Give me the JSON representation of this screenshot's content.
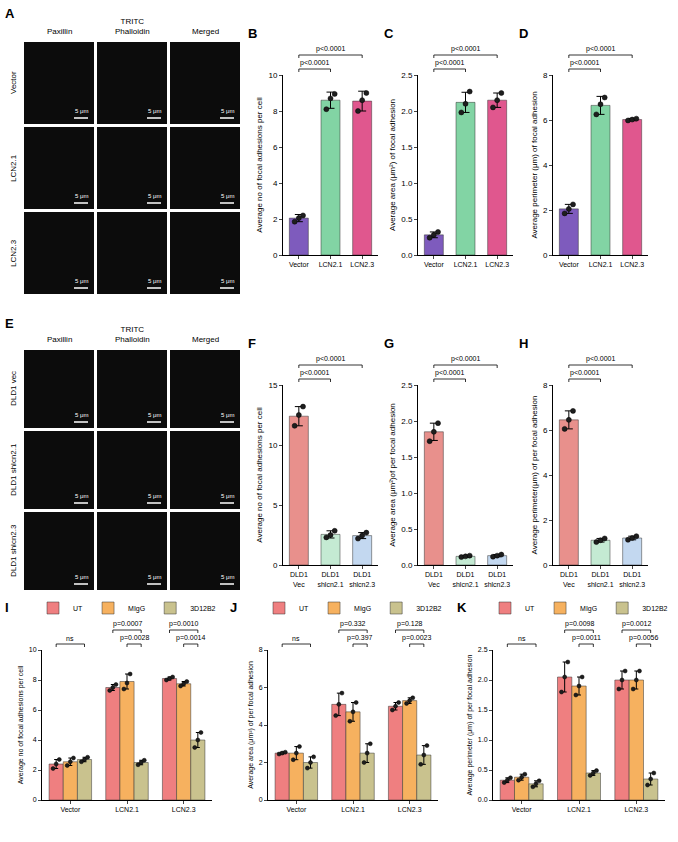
{
  "image_panels": [
    {
      "panel": "A",
      "columns": [
        "Paxillin",
        "TRITC Phalloidin",
        "Merged"
      ],
      "rows": [
        "Vector",
        "LCN2.1",
        "LCN2.3"
      ],
      "scale_bar": "5 μm"
    },
    {
      "panel": "E",
      "columns": [
        "Paxillin",
        "TRITC Phalloidin",
        "Merged"
      ],
      "rows": [
        "DLD1 vec",
        "DLD1 shlcn2.1",
        "DLD1 shlcn2.3"
      ],
      "scale_bar": "5 μm"
    }
  ],
  "chart_data": [
    {
      "panel": "B",
      "type": "bar",
      "y_label": "Average no of focal adhesions per cell",
      "grid": false,
      "categories": [
        "Vector",
        "LCN2.1",
        "LCN2.3"
      ],
      "colors": [
        "#7e5bbd",
        "#82d4a4",
        "#e0578e"
      ],
      "values": [
        2.05,
        8.6,
        8.55
      ],
      "errors": [
        0.2,
        0.45,
        0.55
      ],
      "points": [
        [
          1.85,
          2.05,
          2.2
        ],
        [
          8.1,
          8.7,
          8.95
        ],
        [
          8.0,
          8.6,
          9.0
        ]
      ],
      "ylim": [
        0,
        10
      ],
      "yticks": [
        0,
        2,
        4,
        6,
        8,
        10
      ],
      "comparisons": [
        {
          "from": "Vector",
          "to": "LCN2.1",
          "label": "p<0.0001"
        },
        {
          "from": "Vector",
          "to": "LCN2.3",
          "label": "p<0.0001"
        }
      ]
    },
    {
      "panel": "C",
      "type": "bar",
      "y_label": "Average area (μm²) of focal adhesion",
      "grid": false,
      "categories": [
        "Vector",
        "LCN2.1",
        "LCN2.3"
      ],
      "colors": [
        "#7e5bbd",
        "#82d4a4",
        "#e0578e"
      ],
      "values": [
        0.28,
        2.12,
        2.15
      ],
      "errors": [
        0.04,
        0.14,
        0.1
      ],
      "points": [
        [
          0.24,
          0.28,
          0.32
        ],
        [
          1.98,
          2.1,
          2.27
        ],
        [
          2.05,
          2.15,
          2.25
        ]
      ],
      "ylim": [
        0,
        2.5
      ],
      "yticks": [
        {
          "value": 0,
          "label": "0.0"
        },
        0.5,
        {
          "value": 1,
          "label": "1.0"
        },
        1.5,
        {
          "value": 2,
          "label": "2.0"
        },
        2.5
      ],
      "comparisons": [
        {
          "from": "Vector",
          "to": "LCN2.1",
          "label": "p<0.0001"
        },
        {
          "from": "Vector",
          "to": "LCN2.3",
          "label": "p<0.0001"
        }
      ]
    },
    {
      "panel": "D",
      "type": "bar",
      "y_label": "Average perimeter (μm) of focal adhesion",
      "grid": false,
      "categories": [
        "Vector",
        "LCN2.1",
        "LCN2.3"
      ],
      "colors": [
        "#7e5bbd",
        "#82d4a4",
        "#e0578e"
      ],
      "values": [
        2.05,
        6.65,
        6.02
      ],
      "errors": [
        0.2,
        0.4,
        0.05
      ],
      "points": [
        [
          1.85,
          2.05,
          2.25
        ],
        [
          6.25,
          6.7,
          7.0
        ],
        [
          5.98,
          6.02,
          6.06
        ]
      ],
      "ylim": [
        0,
        8
      ],
      "yticks": [
        0,
        2,
        4,
        6,
        8
      ],
      "comparisons": [
        {
          "from": "Vector",
          "to": "LCN2.1",
          "label": "p<0.0001"
        },
        {
          "from": "Vector",
          "to": "LCN2.3",
          "label": "p<0.0001"
        }
      ]
    },
    {
      "panel": "F",
      "type": "bar",
      "y_label": "Average no of focal adhesions per cell",
      "grid": false,
      "categories": [
        "DLD1 Vec",
        "DLD1 shlcn2.1",
        "DLD1 shlcn2.3"
      ],
      "colors": [
        "#e8908c",
        "#c4ead3",
        "#c3d8f0"
      ],
      "values": [
        12.4,
        2.55,
        2.45
      ],
      "errors": [
        0.8,
        0.3,
        0.25
      ],
      "points": [
        [
          11.6,
          12.5,
          13.2
        ],
        [
          2.3,
          2.5,
          2.85
        ],
        [
          2.2,
          2.45,
          2.7
        ]
      ],
      "ylim": [
        0,
        15
      ],
      "yticks": [
        0,
        5,
        10,
        15
      ],
      "comparisons": [
        {
          "from": "DLD1 Vec",
          "to": "DLD1 shlcn2.1",
          "label": "p<0.0001"
        },
        {
          "from": "DLD1 Vec",
          "to": "DLD1 shlcn2.3",
          "label": "p<0.0001"
        }
      ]
    },
    {
      "panel": "G",
      "type": "bar",
      "y_label": "Average area (μm²)of per focal adhesion",
      "grid": false,
      "categories": [
        "DLD1 Vec",
        "DLD1 shlcn2.1",
        "DLD1 shlcn2.3"
      ],
      "colors": [
        "#e8908c",
        "#c4ead3",
        "#c3d8f0"
      ],
      "values": [
        1.85,
        0.12,
        0.13
      ],
      "errors": [
        0.12,
        0.01,
        0.015
      ],
      "points": [
        [
          1.72,
          1.85,
          1.97
        ],
        [
          0.11,
          0.12,
          0.13
        ],
        [
          0.115,
          0.13,
          0.145
        ]
      ],
      "ylim": [
        0,
        2.5
      ],
      "yticks": [
        {
          "value": 0,
          "label": "0.0"
        },
        0.5,
        {
          "value": 1,
          "label": "1.0"
        },
        1.5,
        {
          "value": 2,
          "label": "2.0"
        },
        2.5
      ],
      "comparisons": [
        {
          "from": "DLD1 Vec",
          "to": "DLD1 shlcn2.1",
          "label": "p<0.0001"
        },
        {
          "from": "DLD1 Vec",
          "to": "DLD1 shlcn2.3",
          "label": "p<0.0001"
        }
      ]
    },
    {
      "panel": "H",
      "type": "bar",
      "y_label": "Average perimeter(μm) of per focal adhesion",
      "grid": false,
      "categories": [
        "DLD1 Vec",
        "DLD1 shlcn2.1",
        "DLD1 shlcn2.3"
      ],
      "colors": [
        "#e8908c",
        "#c4ead3",
        "#c3d8f0"
      ],
      "values": [
        6.45,
        1.1,
        1.2
      ],
      "errors": [
        0.4,
        0.08,
        0.08
      ],
      "points": [
        [
          6.05,
          6.45,
          6.85
        ],
        [
          1.02,
          1.1,
          1.18
        ],
        [
          1.12,
          1.2,
          1.28
        ]
      ],
      "ylim": [
        0,
        8
      ],
      "yticks": [
        0,
        2,
        4,
        6,
        8
      ],
      "comparisons": [
        {
          "from": "DLD1 Vec",
          "to": "DLD1 shlcn2.1",
          "label": "p<0.0001"
        },
        {
          "from": "DLD1 Vec",
          "to": "DLD1 shlcn2.3",
          "label": "p<0.0001"
        }
      ]
    },
    {
      "panel": "I",
      "type": "bar",
      "y_label": "Average no of focal adhesions per cell",
      "grid": false,
      "legend": "top",
      "categories": [
        "Vector",
        "LCN2.1",
        "LCN2.3"
      ],
      "series": [
        {
          "name": "UT",
          "color": "#ef7f80",
          "values": [
            2.4,
            7.5,
            8.1
          ],
          "errors": [
            0.3,
            0.2,
            0.1
          ],
          "points": [
            [
              2.1,
              2.4,
              2.7
            ],
            [
              7.3,
              7.5,
              7.7
            ],
            [
              8.0,
              8.1,
              8.2
            ]
          ]
        },
        {
          "name": "MIgG",
          "color": "#f6b15f",
          "values": [
            2.55,
            7.9,
            7.75
          ],
          "errors": [
            0.25,
            0.5,
            0.15
          ],
          "points": [
            [
              2.3,
              2.55,
              2.8
            ],
            [
              7.4,
              7.8,
              8.4
            ],
            [
              7.6,
              7.75,
              7.9
            ]
          ]
        },
        {
          "name": "3D12B2",
          "color": "#c9c28e",
          "values": [
            2.7,
            2.5,
            4.0
          ],
          "errors": [
            0.15,
            0.15,
            0.5
          ],
          "points": [
            [
              2.55,
              2.7,
              2.85
            ],
            [
              2.35,
              2.5,
              2.65
            ],
            [
              3.5,
              4.0,
              4.5
            ]
          ]
        }
      ],
      "ylim": [
        0,
        10
      ],
      "yticks": [
        0,
        2,
        4,
        6,
        8,
        10
      ],
      "comparisons": [
        {
          "category": "Vector",
          "from": "UT",
          "to": "3D12B2",
          "label": "ns"
        },
        {
          "category": "LCN2.1",
          "from": "MIgG",
          "to": "3D12B2",
          "label": "p=0.0028"
        },
        {
          "category": "LCN2.1",
          "from": "UT",
          "to": "3D12B2",
          "label": "p=0.0007"
        },
        {
          "category": "LCN2.3",
          "from": "MIgG",
          "to": "3D12B2",
          "label": "p=0.0014"
        },
        {
          "category": "LCN2.3",
          "from": "UT",
          "to": "3D12B2",
          "label": "p=0.0010"
        }
      ]
    },
    {
      "panel": "J",
      "type": "bar",
      "y_label": "Average area (μm²) of per focal adhesion",
      "grid": false,
      "legend": "top",
      "categories": [
        "Vector",
        "LCN2.1",
        "LCN2.3"
      ],
      "series": [
        {
          "name": "UT",
          "color": "#ef7f80",
          "values": [
            2.5,
            5.1,
            5.0
          ],
          "errors": [
            0.05,
            0.6,
            0.2
          ],
          "points": [
            [
              2.45,
              2.5,
              2.55
            ],
            [
              4.5,
              5.1,
              5.7
            ],
            [
              4.8,
              5.0,
              5.2
            ]
          ]
        },
        {
          "name": "MIgG",
          "color": "#f6b15f",
          "values": [
            2.5,
            4.7,
            5.3
          ],
          "errors": [
            0.35,
            0.5,
            0.15
          ],
          "points": [
            [
              2.15,
              2.5,
              2.85
            ],
            [
              4.2,
              4.7,
              5.2
            ],
            [
              5.15,
              5.3,
              5.45
            ]
          ]
        },
        {
          "name": "3D12B2",
          "color": "#c9c28e",
          "values": [
            2.0,
            2.5,
            2.4
          ],
          "errors": [
            0.3,
            0.5,
            0.5
          ],
          "points": [
            [
              1.7,
              2.0,
              2.3
            ],
            [
              2.0,
              2.5,
              3.0
            ],
            [
              1.9,
              2.4,
              2.9
            ]
          ]
        }
      ],
      "ylim": [
        0,
        8
      ],
      "yticks": [
        0,
        2,
        4,
        6,
        8
      ],
      "comparisons": [
        {
          "category": "Vector",
          "from": "UT",
          "to": "3D12B2",
          "label": "ns"
        },
        {
          "category": "LCN2.1",
          "from": "MIgG",
          "to": "3D12B2",
          "label": "p=0.397"
        },
        {
          "category": "LCN2.1",
          "from": "UT",
          "to": "3D12B2",
          "label": "p=0.332"
        },
        {
          "category": "LCN2.3",
          "from": "MIgG",
          "to": "3D12B2",
          "label": "p=0.0023"
        },
        {
          "category": "LCN2.3",
          "from": "UT",
          "to": "3D12B2",
          "label": "p=0.128"
        }
      ]
    },
    {
      "panel": "K",
      "type": "bar",
      "y_label": "Average perimeter (μm) of per focal adhesion",
      "grid": false,
      "legend": "top",
      "categories": [
        "Vector",
        "LCN2.1",
        "LCN2.3"
      ],
      "series": [
        {
          "name": "UT",
          "color": "#ef7f80",
          "values": [
            0.33,
            2.05,
            2.0
          ],
          "errors": [
            0.04,
            0.25,
            0.15
          ],
          "points": [
            [
              0.29,
              0.33,
              0.37
            ],
            [
              1.8,
              2.05,
              2.3
            ],
            [
              1.85,
              2.0,
              2.15
            ]
          ]
        },
        {
          "name": "MIgG",
          "color": "#f6b15f",
          "values": [
            0.38,
            1.9,
            2.0
          ],
          "errors": [
            0.05,
            0.15,
            0.15
          ],
          "points": [
            [
              0.33,
              0.38,
              0.43
            ],
            [
              1.75,
              1.9,
              2.05
            ],
            [
              1.85,
              2.0,
              2.15
            ]
          ]
        },
        {
          "name": "3D12B2",
          "color": "#c9c28e",
          "values": [
            0.27,
            0.45,
            0.35
          ],
          "errors": [
            0.05,
            0.04,
            0.1
          ],
          "points": [
            [
              0.22,
              0.27,
              0.32
            ],
            [
              0.41,
              0.45,
              0.49
            ],
            [
              0.25,
              0.35,
              0.45
            ]
          ]
        }
      ],
      "ylim": [
        0,
        2.5
      ],
      "yticks": [
        {
          "value": 0,
          "label": "0.0"
        },
        0.5,
        {
          "value": 1,
          "label": "1.0"
        },
        1.5,
        {
          "value": 2,
          "label": "2.0"
        },
        2.5
      ],
      "comparisons": [
        {
          "category": "Vector",
          "from": "UT",
          "to": "3D12B2",
          "label": "ns"
        },
        {
          "category": "LCN2.1",
          "from": "MIgG",
          "to": "3D12B2",
          "label": "p=0.0011"
        },
        {
          "category": "LCN2.1",
          "from": "UT",
          "to": "3D12B2",
          "label": "p=0.0098"
        },
        {
          "category": "LCN2.3",
          "from": "MIgG",
          "to": "3D12B2",
          "label": "p=0.0056"
        },
        {
          "category": "LCN2.3",
          "from": "UT",
          "to": "3D12B2",
          "label": "p=0.0012"
        }
      ]
    }
  ]
}
